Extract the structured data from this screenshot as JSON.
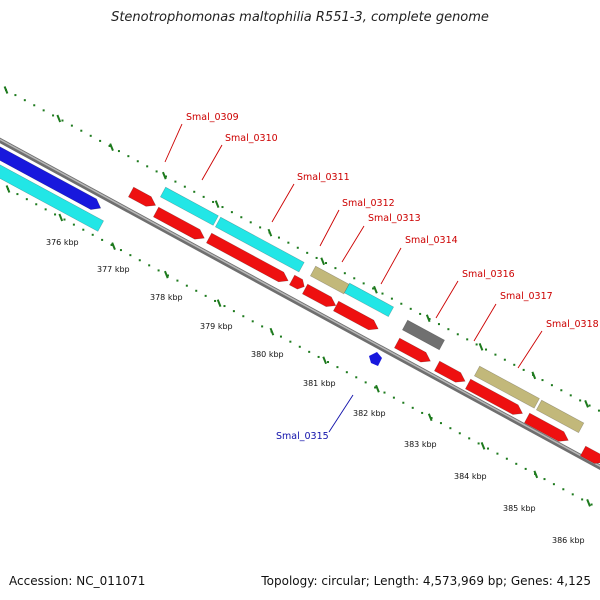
{
  "title": "Stenotrophomonas maltophilia R551-3, complete genome",
  "footer": {
    "accession": "Accession: NC_011071",
    "summary": "Topology: circular; Length: 4,573,969 bp; Genes: 4,125"
  },
  "colors": {
    "backbone": "#8c8c8c",
    "tick": "#1d7a1d",
    "forward_label": "#cc0000",
    "reverse_label": "#1010aa",
    "red": "#ee1010",
    "cyan": "#22e6e6",
    "blue": "#1818dd",
    "olive": "#c2b87a",
    "gray": "#707070"
  },
  "kbp_labels": [
    "376 kbp",
    "377 kbp",
    "378 kbp",
    "379 kbp",
    "380 kbp",
    "381 kbp",
    "382 kbp",
    "383 kbp",
    "384 kbp",
    "385 kbp",
    "386 kbp"
  ],
  "gene_labels": [
    {
      "id": "Smal_0309",
      "strand": "forward"
    },
    {
      "id": "Smal_0310",
      "strand": "forward"
    },
    {
      "id": "Smal_0311",
      "strand": "forward"
    },
    {
      "id": "Smal_0312",
      "strand": "forward"
    },
    {
      "id": "Smal_0313",
      "strand": "forward"
    },
    {
      "id": "Smal_0314",
      "strand": "forward"
    },
    {
      "id": "Smal_0316",
      "strand": "forward"
    },
    {
      "id": "Smal_0317",
      "strand": "forward"
    },
    {
      "id": "Smal_0318",
      "strand": "forward"
    },
    {
      "id": "Smal_0315",
      "strand": "reverse"
    }
  ]
}
